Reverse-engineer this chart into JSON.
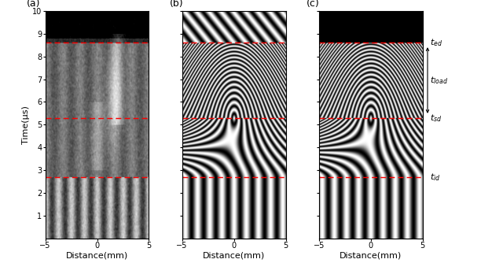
{
  "xlabel": "Distance(mm)",
  "ylabel": "Time(μs)",
  "xlim": [
    -5,
    5
  ],
  "ylim": [
    0,
    10
  ],
  "yticks": [
    1,
    2,
    3,
    4,
    5,
    6,
    7,
    8,
    9,
    10
  ],
  "xticks": [
    -5,
    0,
    5
  ],
  "dashed_lines": [
    2.7,
    5.3,
    8.6
  ],
  "figsize": [
    6.4,
    3.48
  ],
  "dpi": 100,
  "t_id": 2.7,
  "t_sd": 5.3,
  "t_ed": 8.6
}
